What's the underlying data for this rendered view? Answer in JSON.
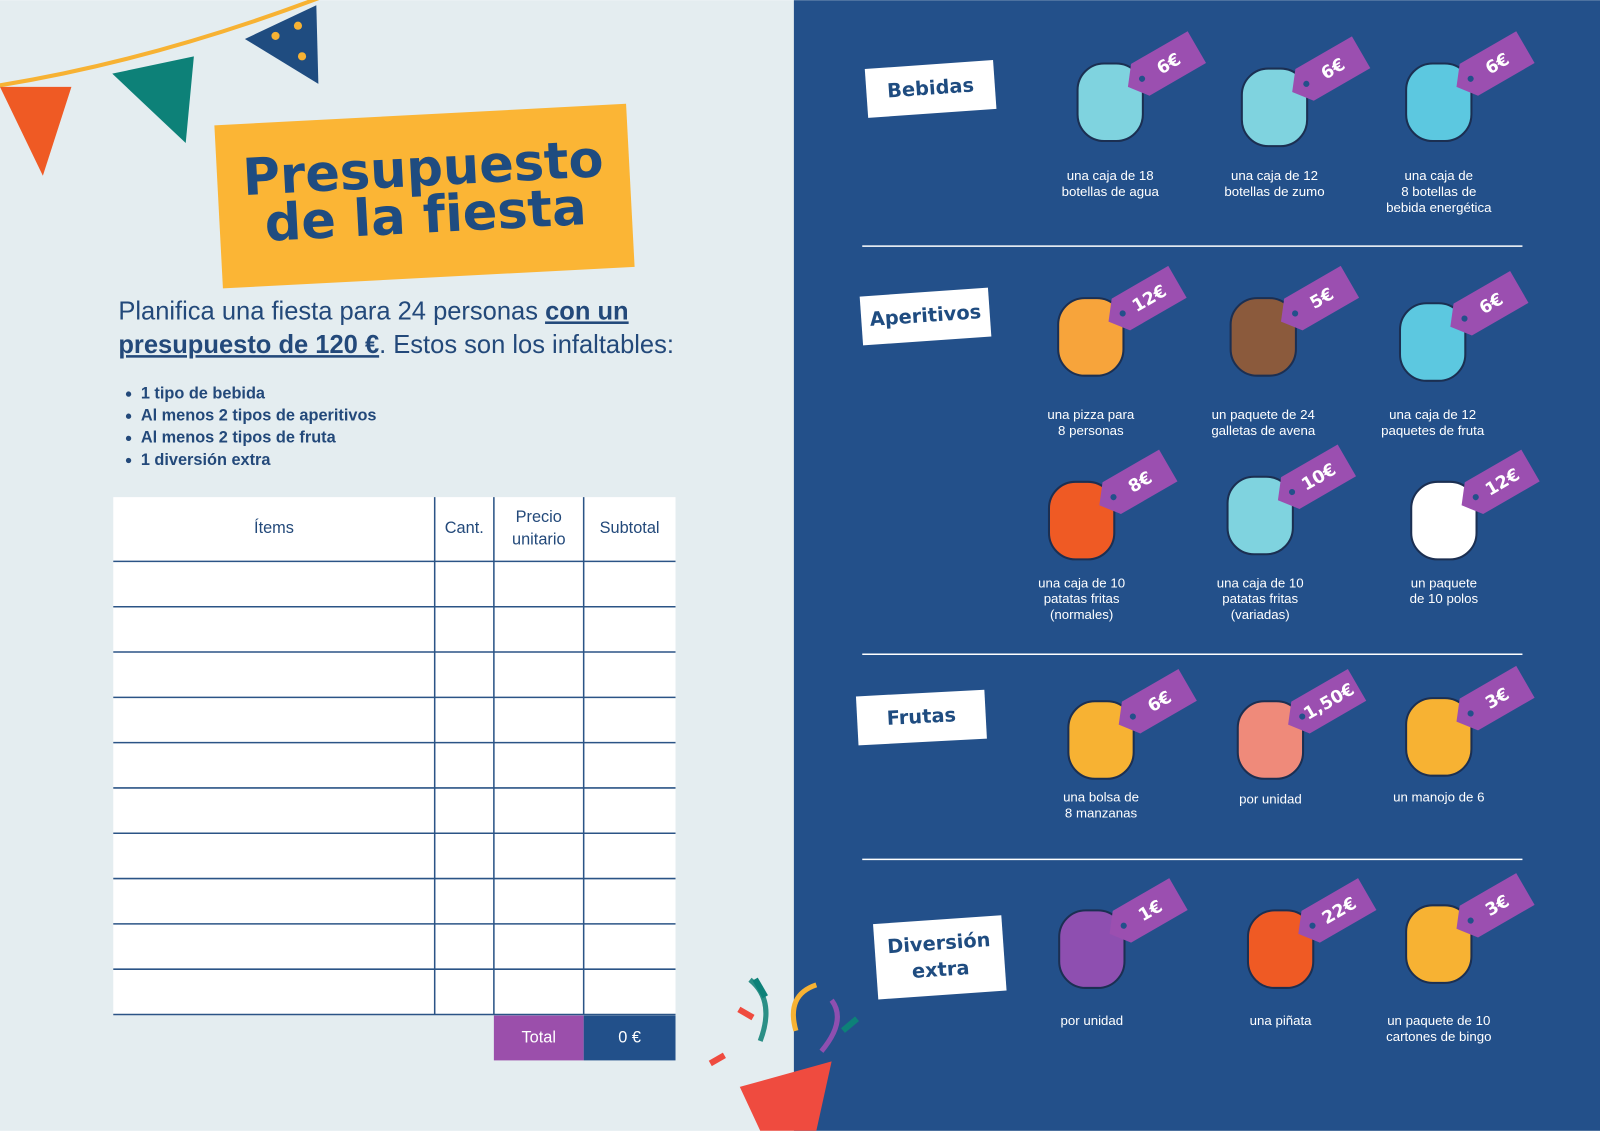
{
  "title": [
    "Presupuesto",
    "de la fiesta"
  ],
  "intro": [
    [
      {
        "text": "Planifica una fiesta para 24 personas "
      },
      {
        "text": "con un",
        "emphasis": true
      }
    ],
    [
      {
        "text": "presupuesto de 120 €",
        "emphasis": true
      },
      {
        "text": ". Estos son los infaltables:"
      }
    ]
  ],
  "requirements": [
    "1 tipo de bebida",
    "Al menos 2 tipos de aperitivos",
    "Al menos 2 tipos de fruta",
    "1 diversión extra"
  ],
  "table": {
    "headers": [
      [
        "Ítems"
      ],
      [
        "Cant."
      ],
      [
        "Precio",
        "unitario"
      ],
      [
        "Subtotal"
      ]
    ],
    "total_label": "Total",
    "total_value": "0 €"
  },
  "sections": [
    {
      "name": [
        "Bebidas"
      ],
      "items": [
        {
          "price": "6€",
          "description": [
            "una caja de 18",
            "botellas de agua"
          ]
        },
        {
          "price": "6€",
          "description": [
            "una caja de 12",
            "botellas de zumo"
          ]
        },
        {
          "price": "6€",
          "description": [
            "una caja de",
            "8 botellas de",
            "bebida energética"
          ]
        }
      ]
    },
    {
      "name": [
        "Aperitivos"
      ],
      "items": [
        {
          "price": "12€",
          "description": [
            "una pizza para",
            "8 personas"
          ]
        },
        {
          "price": "5€",
          "description": [
            "un paquete de 24",
            "galletas de avena"
          ]
        },
        {
          "price": "6€",
          "description": [
            "una caja de 12",
            "paquetes de fruta"
          ]
        },
        {
          "price": "8€",
          "description": [
            "una caja de 10",
            "patatas fritas",
            "(normales)"
          ]
        },
        {
          "price": "10€",
          "description": [
            "una caja de 10",
            "patatas fritas",
            "(variadas)"
          ]
        },
        {
          "price": "12€",
          "description": [
            "un paquete",
            "de 10 polos"
          ]
        }
      ]
    },
    {
      "name": [
        "Frutas"
      ],
      "items": [
        {
          "price": "6€",
          "description": [
            "una bolsa de",
            "8 manzanas"
          ]
        },
        {
          "price": "1,50€",
          "description": [
            "por unidad"
          ]
        },
        {
          "price": "3€",
          "description": [
            "un manojo de 6"
          ]
        }
      ]
    },
    {
      "name": [
        "Diversión",
        "extra"
      ],
      "items": [
        {
          "price": "1€",
          "description": [
            "por unidad"
          ]
        },
        {
          "price": "22€",
          "description": [
            "una piñata"
          ]
        },
        {
          "price": "3€",
          "description": [
            "un paquete de 10",
            "cartones de bingo"
          ]
        }
      ]
    }
  ]
}
